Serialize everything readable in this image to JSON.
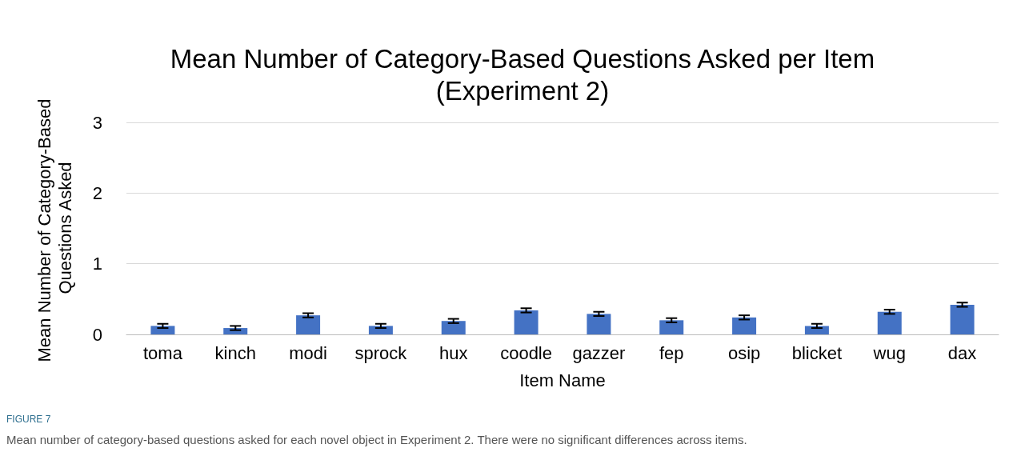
{
  "chart_data": {
    "type": "bar",
    "title": "Mean Number of Category-Based Questions Asked per Item\n(Experiment 2)",
    "xlabel": "Item Name",
    "ylabel": "Mean Number of Category-Based Questions Asked",
    "categories": [
      "toma",
      "kinch",
      "modi",
      "sprock",
      "hux",
      "coodle",
      "gazzer",
      "fep",
      "osip",
      "blicket",
      "wug",
      "dax"
    ],
    "values": [
      0.12,
      0.09,
      0.27,
      0.12,
      0.19,
      0.34,
      0.29,
      0.2,
      0.24,
      0.12,
      0.32,
      0.42
    ],
    "errors": [
      0.03,
      0.03,
      0.03,
      0.03,
      0.03,
      0.03,
      0.03,
      0.03,
      0.03,
      0.03,
      0.03,
      0.03
    ],
    "color": "#4472c4",
    "ylim": [
      0,
      3
    ],
    "yticks": [
      0,
      1,
      2,
      3
    ],
    "grid": "y",
    "annotations": [
      "FIGURE 7",
      "Mean number of category-based questions asked for each novel object in Experiment 2. There were no significant differences across items."
    ]
  }
}
